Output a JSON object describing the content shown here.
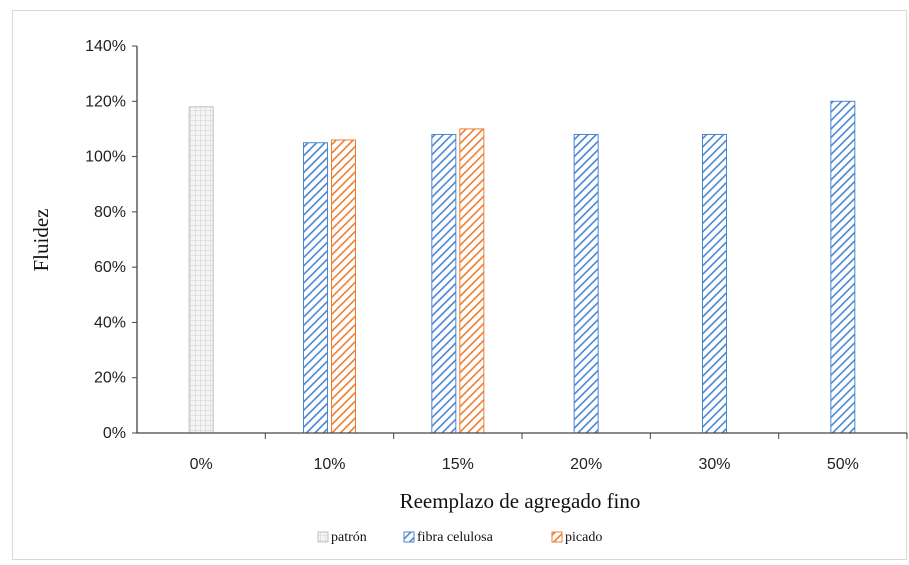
{
  "chart_data": {
    "type": "bar",
    "categories": [
      "0%",
      "10%",
      "15%",
      "20%",
      "30%",
      "50%"
    ],
    "series": [
      {
        "name": "patrón",
        "values": [
          118,
          null,
          null,
          null,
          null,
          null
        ],
        "color": "#d9d9d9",
        "pattern": "grid"
      },
      {
        "name": "fibra celulosa",
        "values": [
          null,
          105,
          108,
          108,
          108,
          120
        ],
        "color": "#4a86d4",
        "pattern": "diagonal"
      },
      {
        "name": "picado",
        "values": [
          null,
          106,
          110,
          null,
          null,
          null
        ],
        "color": "#ed7d31",
        "pattern": "diagonal"
      }
    ],
    "title": "",
    "xlabel": "Reemplazo de agregado fino",
    "ylabel": "Fluidez",
    "ylim": [
      0,
      140
    ],
    "yticks": [
      "0%",
      "20%",
      "40%",
      "60%",
      "80%",
      "100%",
      "120%",
      "140%"
    ],
    "ytick_values": [
      0,
      20,
      40,
      60,
      80,
      100,
      120,
      140
    ],
    "grid": false,
    "legend_position": "bottom"
  }
}
